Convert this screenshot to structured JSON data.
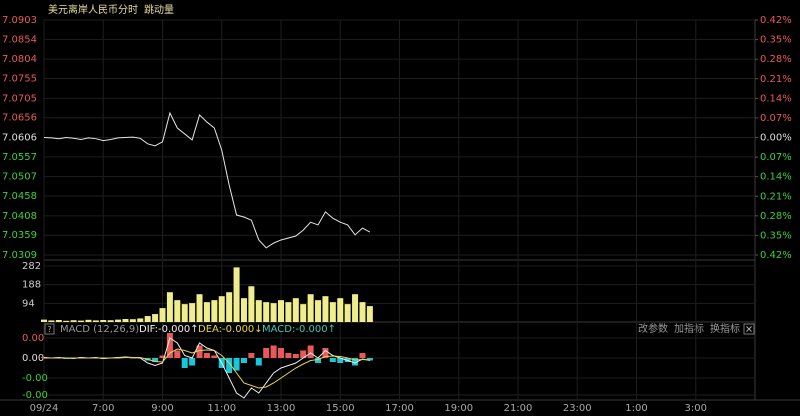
{
  "header": {
    "title": "美元离岸人民币",
    "tabs": [
      "分时",
      "跳动量"
    ]
  },
  "toolbar": [
    "改参数",
    "加指标",
    "换指标"
  ],
  "chart_data": {
    "type": "line",
    "x": [
      5,
      5.25,
      5.5,
      5.75,
      6,
      6.25,
      6.5,
      6.75,
      7,
      7.25,
      7.5,
      7.75,
      8,
      8.25,
      8.5,
      8.75,
      9,
      9.25,
      9.5,
      9.75,
      10,
      10.25,
      10.5,
      10.75,
      11,
      11.25,
      11.5,
      11.75,
      12,
      12.25,
      12.5,
      12.75,
      13,
      13.25,
      13.5,
      13.75,
      14,
      14.25,
      14.5,
      14.75,
      15,
      15.25,
      15.5,
      15.75,
      16
    ],
    "xlim": [
      5,
      29
    ],
    "xticks": [
      {
        "value": 5,
        "label": "09/24"
      },
      {
        "value": 7,
        "label": "7:00"
      },
      {
        "value": 9,
        "label": "9:00"
      },
      {
        "value": 11,
        "label": "11:00"
      },
      {
        "value": 13,
        "label": "13:00"
      },
      {
        "value": 15,
        "label": "15:00"
      },
      {
        "value": 17,
        "label": "17:00"
      },
      {
        "value": 19,
        "label": "19:00"
      },
      {
        "value": 21,
        "label": "21:00"
      },
      {
        "value": 23,
        "label": "23:00"
      },
      {
        "value": 25,
        "label": "1:00"
      },
      {
        "value": 27,
        "label": "3:00"
      }
    ],
    "ylim": [
      7.0309,
      7.0903
    ],
    "yticks": [
      7.0903,
      7.0854,
      7.0804,
      7.0755,
      7.0705,
      7.0656,
      7.0606,
      7.0557,
      7.0507,
      7.0458,
      7.0408,
      7.0359,
      7.0309
    ],
    "y2lim": [
      -0.42,
      0.42
    ],
    "y2ticks": [
      {
        "value": 0.42,
        "label": "0.42%"
      },
      {
        "value": 0.35,
        "label": "0.35%"
      },
      {
        "value": 0.28,
        "label": "0.28%"
      },
      {
        "value": 0.21,
        "label": "0.21%"
      },
      {
        "value": 0.14,
        "label": "0.14%"
      },
      {
        "value": 0.07,
        "label": "0.07%"
      },
      {
        "value": 0,
        "label": "0.00%"
      },
      {
        "value": -0.07,
        "label": "0.07%"
      },
      {
        "value": -0.14,
        "label": "0.14%"
      },
      {
        "value": -0.21,
        "label": "0.21%"
      },
      {
        "value": -0.28,
        "label": "0.28%"
      },
      {
        "value": -0.35,
        "label": "0.35%"
      },
      {
        "value": -0.42,
        "label": "0.42%"
      }
    ],
    "grid": true,
    "up_color": "#e85a5a",
    "down_color": "#3dd03d",
    "base_color": "#dddddd",
    "series": [
      {
        "color": "#e6e6e6",
        "values": [
          7.0606,
          7.0605,
          7.0603,
          7.0606,
          7.0604,
          7.0601,
          7.0605,
          7.0603,
          7.0598,
          7.0601,
          7.0605,
          7.0606,
          7.0607,
          7.0604,
          7.059,
          7.0585,
          7.0595,
          7.0668,
          7.063,
          7.0615,
          7.06,
          7.0663,
          7.0645,
          7.063,
          7.0574,
          7.0486,
          7.041,
          7.0405,
          7.0397,
          7.0347,
          7.0327,
          7.0339,
          7.0347,
          7.0352,
          7.0357,
          7.0372,
          7.0392,
          7.0385,
          7.0418,
          7.0402,
          7.0392,
          7.0385,
          7.036,
          7.0377,
          7.0367
        ]
      }
    ],
    "volume": {
      "type": "bar",
      "color": "#f0ee8c",
      "ylim": [
        0,
        282
      ],
      "yticks": [
        282,
        188,
        94
      ],
      "values": [
        12,
        8,
        10,
        6,
        9,
        7,
        11,
        8,
        10,
        9,
        12,
        15,
        14,
        18,
        30,
        40,
        70,
        150,
        110,
        90,
        95,
        140,
        100,
        110,
        130,
        150,
        275,
        120,
        180,
        110,
        100,
        95,
        110,
        100,
        120,
        90,
        140,
        110,
        130,
        100,
        120,
        90,
        140,
        100,
        80
      ]
    },
    "macd": {
      "title": "MACD (12,26,9)",
      "help": "?",
      "ylim": [
        -0.00084,
        0.00052
      ],
      "yticks": [
        {
          "value": 0.0004,
          "label": "0.00"
        },
        {
          "value": 0,
          "label": "0.00"
        },
        {
          "value": -0.0004,
          "label": "-0.00"
        },
        {
          "value": -0.00074,
          "label": "-0.00"
        }
      ],
      "series": [
        {
          "name": "DIF:-0.000↑",
          "type": "line",
          "color": "#f0f0f0",
          "values": [
            1e-05,
            0,
            1e-05,
            0,
            -1e-05,
            1e-05,
            0,
            1e-05,
            -1e-05,
            0,
            1e-05,
            2e-05,
            1e-05,
            0,
            -0.0001,
            -0.00015,
            -0.0001,
            0.0004,
            0.0003,
            5e-05,
            0,
            0.0003,
            0.0002,
            0.00015,
            -0.0001,
            -0.0004,
            -0.0007,
            -0.0008,
            -0.0006,
            -0.0007,
            -0.0005,
            -0.0003,
            -0.0002,
            -0.00015,
            -0.0001,
            0,
            0.0001,
            0,
            0.00015,
            5e-05,
            0,
            -5e-05,
            -0.0001,
            -2e-05,
            -5e-05
          ]
        },
        {
          "name": "DEA:-0.000↓",
          "type": "line",
          "color": "#e8d44d",
          "values": [
            0,
            0,
            0,
            0,
            0,
            0,
            0,
            0,
            0,
            0,
            0,
            1e-05,
            1e-05,
            1e-05,
            -3e-05,
            -7e-05,
            -8e-05,
            0.0001,
            0.00018,
            0.00015,
            0.0001,
            0.00015,
            0.00016,
            0.00015,
            5e-05,
            -0.0001,
            -0.0003,
            -0.0005,
            -0.00055,
            -0.0006,
            -0.00058,
            -0.0005,
            -0.0004,
            -0.0003,
            -0.0002,
            -0.00012,
            -5e-05,
            -3e-05,
            3e-05,
            4e-05,
            3e-05,
            0,
            -4e-05,
            -3e-05,
            -4e-05
          ]
        },
        {
          "name": "MACD:-0.000↑",
          "type": "bar",
          "color": "#3dc8b8",
          "up_color": "#e85a5a",
          "down_color": "#18c8d8",
          "values": [
            2e-05,
            -1e-05,
            1e-05,
            -2e-05,
            1e-05,
            2e-05,
            -1e-05,
            1e-05,
            -2e-05,
            1e-05,
            2e-05,
            1e-05,
            -1e-05,
            1e-05,
            -5e-05,
            -8e-05,
            5e-05,
            0.0005,
            0.00015,
            -0.0002,
            -0.00015,
            0.00025,
            0.0001,
            5e-05,
            -0.0002,
            -0.0003,
            -0.00025,
            -0.0001,
            0.0001,
            -0.00015,
            0.0002,
            0.00025,
            0.0002,
            0.0001,
            8e-05,
            0.00015,
            0.00025,
            -0.0001,
            0.0002,
            -8e-05,
            -0.0001,
            -8e-05,
            -0.00015,
            0.0001,
            -5e-05
          ]
        }
      ]
    }
  }
}
